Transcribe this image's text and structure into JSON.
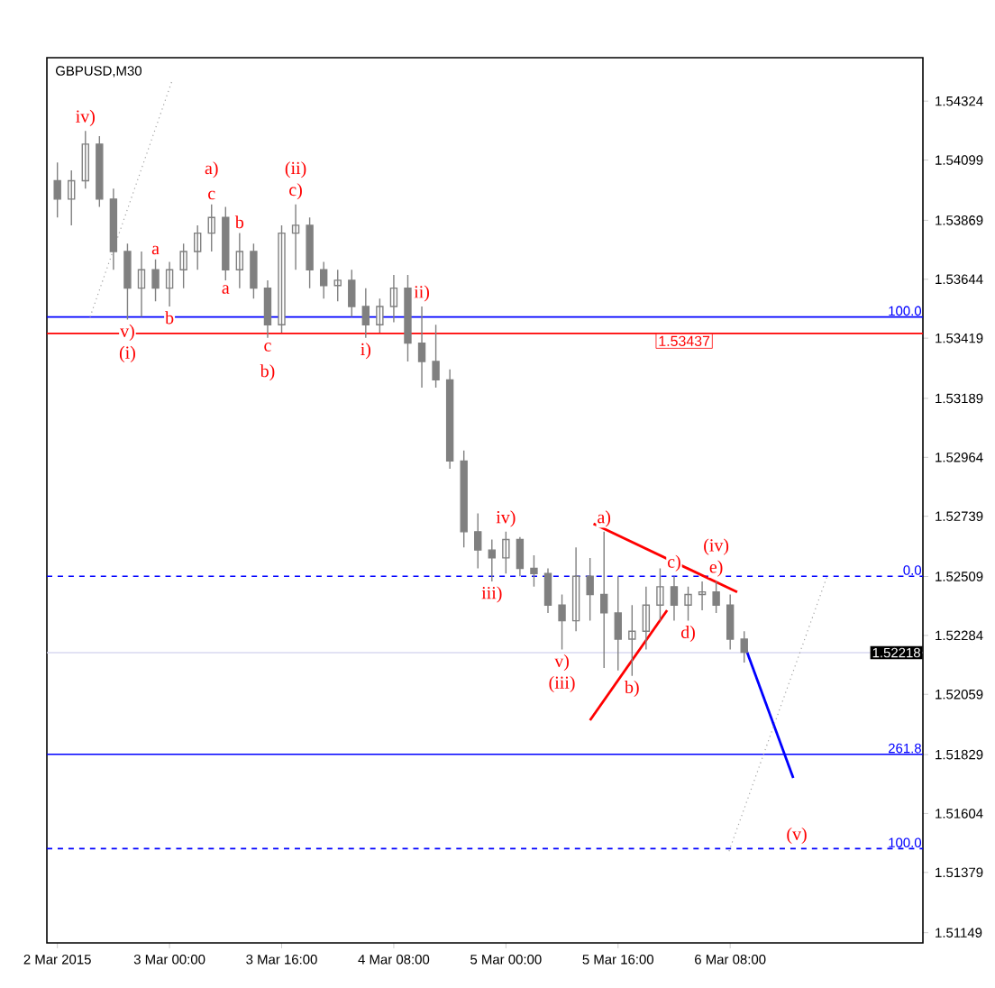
{
  "chart_data": {
    "type": "candlestick",
    "title": "GBPUSD,M30",
    "x": [
      "2015-03-02T08:00",
      "2015-03-02T10:00",
      "2015-03-02T12:00",
      "2015-03-02T14:00",
      "2015-03-02T16:00",
      "2015-03-02T18:00",
      "2015-03-02T20:00",
      "2015-03-02T22:00",
      "2015-03-03T00:00",
      "2015-03-03T02:00",
      "2015-03-03T04:00",
      "2015-03-03T06:00",
      "2015-03-03T08:00",
      "2015-03-03T10:00",
      "2015-03-03T12:00",
      "2015-03-03T14:00",
      "2015-03-03T16:00",
      "2015-03-03T18:00",
      "2015-03-03T20:00",
      "2015-03-03T22:00",
      "2015-03-04T00:00",
      "2015-03-04T02:00",
      "2015-03-04T04:00",
      "2015-03-04T06:00",
      "2015-03-04T08:00",
      "2015-03-04T10:00",
      "2015-03-04T12:00",
      "2015-03-04T14:00",
      "2015-03-04T16:00",
      "2015-03-04T18:00",
      "2015-03-04T20:00",
      "2015-03-04T22:00",
      "2015-03-05T00:00",
      "2015-03-05T02:00",
      "2015-03-05T04:00",
      "2015-03-05T06:00",
      "2015-03-05T08:00",
      "2015-03-05T10:00",
      "2015-03-05T12:00",
      "2015-03-05T14:00",
      "2015-03-05T16:00",
      "2015-03-05T18:00",
      "2015-03-05T20:00",
      "2015-03-05T22:00",
      "2015-03-06T00:00",
      "2015-03-06T02:00",
      "2015-03-06T04:00",
      "2015-03-06T06:00",
      "2015-03-06T08:00",
      "2015-03-06T10:00"
    ],
    "ohlc": [
      [
        1.5402,
        1.5409,
        1.5388,
        1.5395
      ],
      [
        1.5395,
        1.5406,
        1.5385,
        1.5402
      ],
      [
        1.5402,
        1.5421,
        1.5399,
        1.5416
      ],
      [
        1.5416,
        1.5419,
        1.5392,
        1.5395
      ],
      [
        1.5395,
        1.5399,
        1.5368,
        1.5375
      ],
      [
        1.5375,
        1.5378,
        1.5349,
        1.5361
      ],
      [
        1.5361,
        1.5375,
        1.535,
        1.5368
      ],
      [
        1.5368,
        1.5372,
        1.5356,
        1.5361
      ],
      [
        1.5361,
        1.5371,
        1.5354,
        1.5368
      ],
      [
        1.5368,
        1.5378,
        1.5361,
        1.5375
      ],
      [
        1.5375,
        1.5385,
        1.5368,
        1.5382
      ],
      [
        1.5382,
        1.5393,
        1.5375,
        1.5388
      ],
      [
        1.5388,
        1.5392,
        1.5364,
        1.5368
      ],
      [
        1.5368,
        1.5382,
        1.5361,
        1.5375
      ],
      [
        1.5375,
        1.5378,
        1.5357,
        1.5361
      ],
      [
        1.5361,
        1.5364,
        1.5342,
        1.5347
      ],
      [
        1.5347,
        1.5385,
        1.5344,
        1.5382
      ],
      [
        1.5382,
        1.5393,
        1.5368,
        1.5385
      ],
      [
        1.5385,
        1.5388,
        1.5361,
        1.5368
      ],
      [
        1.5368,
        1.5371,
        1.5357,
        1.5362
      ],
      [
        1.5362,
        1.5368,
        1.5356,
        1.5364
      ],
      [
        1.5364,
        1.5368,
        1.535,
        1.5354
      ],
      [
        1.5354,
        1.5361,
        1.5342,
        1.5347
      ],
      [
        1.5347,
        1.5357,
        1.5344,
        1.5354
      ],
      [
        1.5354,
        1.5366,
        1.5348,
        1.5361
      ],
      [
        1.5361,
        1.5366,
        1.5333,
        1.534
      ],
      [
        1.534,
        1.5354,
        1.5323,
        1.5333
      ],
      [
        1.5333,
        1.5347,
        1.5323,
        1.5326
      ],
      [
        1.5326,
        1.533,
        1.5292,
        1.5295
      ],
      [
        1.5295,
        1.5299,
        1.5262,
        1.5268
      ],
      [
        1.5268,
        1.5275,
        1.5254,
        1.5261
      ],
      [
        1.5261,
        1.5265,
        1.5249,
        1.5258
      ],
      [
        1.5258,
        1.5268,
        1.5252,
        1.5265
      ],
      [
        1.5265,
        1.5266,
        1.5251,
        1.5254
      ],
      [
        1.5254,
        1.5259,
        1.5247,
        1.5252
      ],
      [
        1.5252,
        1.5254,
        1.5237,
        1.524
      ],
      [
        1.524,
        1.5244,
        1.5223,
        1.5234
      ],
      [
        1.5234,
        1.5262,
        1.523,
        1.5251
      ],
      [
        1.5251,
        1.5258,
        1.5234,
        1.5244
      ],
      [
        1.5244,
        1.5268,
        1.5216,
        1.5237
      ],
      [
        1.5237,
        1.5251,
        1.5215,
        1.5227
      ],
      [
        1.5227,
        1.524,
        1.5213,
        1.523
      ],
      [
        1.523,
        1.5247,
        1.5223,
        1.524
      ],
      [
        1.524,
        1.5254,
        1.5234,
        1.5247
      ],
      [
        1.5247,
        1.5251,
        1.5234,
        1.524
      ],
      [
        1.524,
        1.5247,
        1.5234,
        1.5244
      ],
      [
        1.5244,
        1.5249,
        1.5238,
        1.5245
      ],
      [
        1.5245,
        1.5249,
        1.5237,
        1.524
      ],
      [
        1.524,
        1.5244,
        1.5223,
        1.5227
      ],
      [
        1.5227,
        1.523,
        1.5218,
        1.5222
      ]
    ],
    "color": "#808080",
    "series": [
      {
        "type": "line",
        "x": [
          "2015-03-05T12:30",
          "2015-03-06T09:00"
        ],
        "values": [
          1.5271,
          1.5245
        ],
        "color": "#ff0000",
        "line_style": "solid"
      },
      {
        "type": "line",
        "x": [
          "2015-03-05T12:00",
          "2015-03-05T23:00"
        ],
        "values": [
          1.5196,
          1.5238
        ],
        "color": "#ff0000",
        "line_style": "solid"
      },
      {
        "type": "line",
        "x": [
          "2015-03-06T10:00",
          "2015-03-06T17:00"
        ],
        "values": [
          1.5225,
          1.5174
        ],
        "color": "#0000ff",
        "line_style": "solid"
      },
      {
        "type": "line",
        "x": [
          "2015-03-02T12:40",
          "2015-03-03T00:20"
        ],
        "values": [
          1.535,
          1.544
        ],
        "color": "#a0a0a0",
        "line_style": "dotted"
      },
      {
        "type": "line",
        "x": [
          "2015-03-06T07:50",
          "2015-03-06T21:50"
        ],
        "values": [
          1.5146,
          1.5251
        ],
        "color": "#a0a0a0",
        "line_style": "dotted"
      }
    ],
    "ref_lines": [
      {
        "axis": "y",
        "value": 1.535,
        "color": "#0000ff",
        "line_style": "solid"
      },
      {
        "axis": "y",
        "value": 1.53437,
        "label": "1.53437",
        "color": "#ff0000",
        "line_style": "solid"
      },
      {
        "axis": "y",
        "value": 1.5251,
        "color": "#0000ff",
        "line_style": "dashed"
      },
      {
        "axis": "y",
        "value": 1.52218,
        "label": "1.52218",
        "color": "#d8d8f0",
        "line_style": "solid"
      },
      {
        "axis": "y",
        "value": 1.5183,
        "color": "#0000ff",
        "line_style": "solid"
      },
      {
        "axis": "y",
        "value": 1.5147,
        "color": "#0000ff",
        "line_style": "dashed"
      }
    ],
    "annotations": [
      {
        "text": "iv)",
        "x": "2015-03-02T12:00",
        "y": 1.5421
      },
      {
        "text": "v)",
        "x": "2015-03-02T18:00",
        "y": 1.5349
      },
      {
        "text": "(i)",
        "x": "2015-03-02T18:00",
        "y": 1.5349
      },
      {
        "text": "a",
        "x": "2015-03-02T22:00",
        "y": 1.5372
      },
      {
        "text": "b",
        "x": "2015-03-03T00:00",
        "y": 1.5354
      },
      {
        "text": "c",
        "x": "2015-03-03T06:00",
        "y": 1.5393
      },
      {
        "text": "a)",
        "x": "2015-03-03T06:00",
        "y": 1.5393
      },
      {
        "text": "b",
        "x": "2015-03-03T10:00",
        "y": 1.5382
      },
      {
        "text": "a",
        "x": "2015-03-03T08:00",
        "y": 1.5364
      },
      {
        "text": "c",
        "x": "2015-03-03T14:00",
        "y": 1.5342
      },
      {
        "text": "b)",
        "x": "2015-03-03T14:00",
        "y": 1.5342
      },
      {
        "text": "c)",
        "x": "2015-03-03T18:00",
        "y": 1.5393
      },
      {
        "text": "(ii)",
        "x": "2015-03-03T18:00",
        "y": 1.5393
      },
      {
        "text": "i)",
        "x": "2015-03-04T04:00",
        "y": 1.5342
      },
      {
        "text": "ii)",
        "x": "2015-03-04T12:00",
        "y": 1.5354
      },
      {
        "text": "iii)",
        "x": "2015-03-04T22:00",
        "y": 1.5249
      },
      {
        "text": "iv)",
        "x": "2015-03-05T00:00",
        "y": 1.5268
      },
      {
        "text": "v)",
        "x": "2015-03-05T08:00",
        "y": 1.5223
      },
      {
        "text": "(iii)",
        "x": "2015-03-05T08:00",
        "y": 1.5223
      },
      {
        "text": "a)",
        "x": "2015-03-05T14:00",
        "y": 1.5268
      },
      {
        "text": "b)",
        "x": "2015-03-05T18:00",
        "y": 1.5213
      },
      {
        "text": "c)",
        "x": "2015-03-06T00:00",
        "y": 1.5251
      },
      {
        "text": "d)",
        "x": "2015-03-06T02:00",
        "y": 1.5234
      },
      {
        "text": "e)",
        "x": "2015-03-06T06:00",
        "y": 1.5249
      },
      {
        "text": "(iv)",
        "x": "2015-03-06T06:00",
        "y": 1.5249
      },
      {
        "text": "(v)",
        "x": "2015-03-06T17:30",
        "y": 1.5147
      },
      {
        "text": "100.0",
        "x": "2015-03-07T09:00",
        "y": 1.535
      },
      {
        "text": "0.0",
        "x": "2015-03-07T09:00",
        "y": 1.5251
      },
      {
        "text": "261.8",
        "x": "2015-03-07T09:00",
        "y": 1.5183
      },
      {
        "text": "100.0",
        "x": "2015-03-07T09:00",
        "y": 1.5147
      }
    ],
    "xlim": [
      "2015-03-02T06:30",
      "2015-03-07T11:30"
    ],
    "xticks": [
      {
        "value": "2015-03-02T08:00",
        "label": "2 Mar 2015"
      },
      {
        "value": "2015-03-03T00:00",
        "label": "3 Mar 00:00"
      },
      {
        "value": "2015-03-03T16:00",
        "label": "3 Mar 16:00"
      },
      {
        "value": "2015-03-04T08:00",
        "label": "4 Mar 08:00"
      },
      {
        "value": "2015-03-05T00:00",
        "label": "5 Mar 00:00"
      },
      {
        "value": "2015-03-05T16:00",
        "label": "5 Mar 16:00"
      },
      {
        "value": "2015-03-06T08:00",
        "label": "6 Mar 08:00"
      }
    ],
    "ylim": [
      1.5111,
      1.5449
    ],
    "yticks": [
      1.54324,
      1.54099,
      1.53869,
      1.53644,
      1.53419,
      1.53189,
      1.52964,
      1.52739,
      1.52509,
      1.52284,
      1.52059,
      1.51829,
      1.51604,
      1.51379,
      1.51149
    ]
  }
}
